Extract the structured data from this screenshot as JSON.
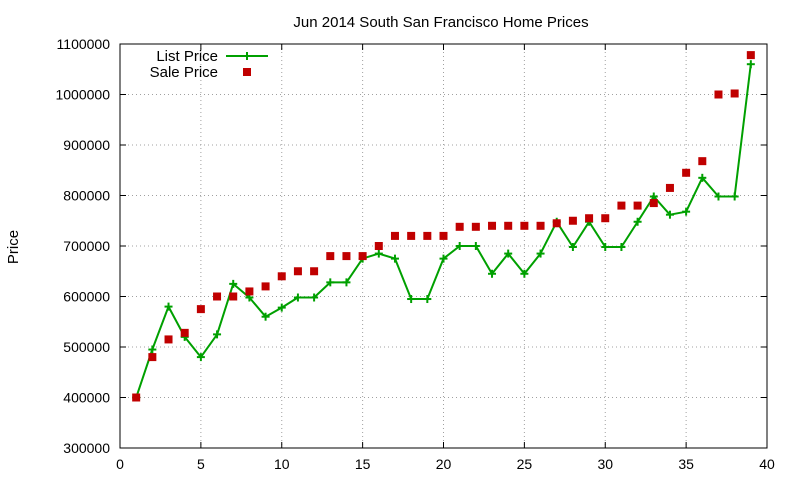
{
  "chart_data": {
    "type": "line",
    "title": "Jun 2014 South San Francisco Home Prices",
    "xlabel": "",
    "ylabel": "Price",
    "xlim": [
      0,
      40
    ],
    "ylim": [
      300000,
      1100000
    ],
    "xticks": [
      0,
      5,
      10,
      15,
      20,
      25,
      30,
      35,
      40
    ],
    "yticks": [
      300000,
      400000,
      500000,
      600000,
      700000,
      800000,
      900000,
      1000000,
      1100000
    ],
    "xtick_labels": [
      "0",
      "5",
      "10",
      "15",
      "20",
      "25",
      "30",
      "35",
      "40"
    ],
    "ytick_labels": [
      "300000",
      "400000",
      "500000",
      "600000",
      "700000",
      "800000",
      "900000",
      "1000000",
      "1100000"
    ],
    "grid": true,
    "legend_position": "top-left",
    "series": [
      {
        "name": "List Price",
        "style": "line-with-plus-markers",
        "color": "#00a000",
        "x": [
          1,
          2,
          3,
          4,
          5,
          6,
          7,
          8,
          9,
          10,
          11,
          12,
          13,
          14,
          15,
          16,
          17,
          18,
          19,
          20,
          21,
          22,
          23,
          24,
          25,
          26,
          27,
          28,
          29,
          30,
          31,
          32,
          33,
          34,
          35,
          36,
          37,
          38,
          39
        ],
        "y": [
          400000,
          495000,
          580000,
          520000,
          480000,
          525000,
          625000,
          598000,
          560000,
          578000,
          598000,
          598000,
          628000,
          628000,
          675000,
          685000,
          675000,
          595000,
          595000,
          675000,
          700000,
          700000,
          645000,
          685000,
          645000,
          685000,
          748000,
          698000,
          748000,
          698000,
          698000,
          748000,
          798000,
          762000,
          768000,
          835000,
          798000,
          798000,
          1060000
        ]
      },
      {
        "name": "Sale Price",
        "style": "square-markers",
        "color": "#c00000",
        "x": [
          1,
          2,
          3,
          4,
          5,
          6,
          7,
          8,
          9,
          10,
          11,
          12,
          13,
          14,
          15,
          16,
          17,
          18,
          19,
          20,
          21,
          22,
          23,
          24,
          25,
          26,
          27,
          28,
          29,
          30,
          31,
          32,
          33,
          34,
          35,
          36,
          37,
          38,
          39
        ],
        "y": [
          400000,
          480000,
          515000,
          528000,
          575000,
          600000,
          600000,
          610000,
          620000,
          640000,
          650000,
          650000,
          680000,
          680000,
          680000,
          700000,
          720000,
          720000,
          720000,
          720000,
          738000,
          738000,
          740000,
          740000,
          740000,
          740000,
          745000,
          750000,
          755000,
          755000,
          780000,
          780000,
          785000,
          815000,
          845000,
          868000,
          1000000,
          1002000,
          1078000
        ]
      }
    ]
  }
}
